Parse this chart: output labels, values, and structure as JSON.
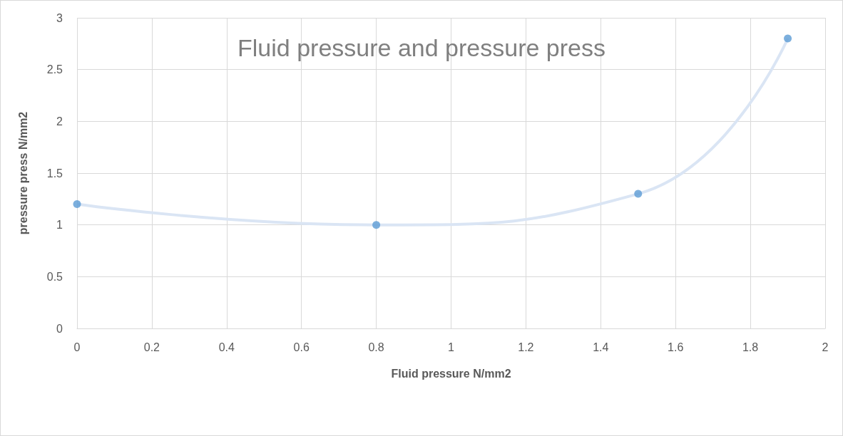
{
  "chart_data": {
    "type": "scatter",
    "title": "Fluid pressure and pressure press",
    "xlabel": "Fluid pressure N/mm2",
    "ylabel": "pressure press N/mm2",
    "x": [
      0,
      0.8,
      1.5,
      1.9
    ],
    "series": [
      {
        "type": "line",
        "color": "#dae5f4",
        "marker": "none",
        "values": [
          1.2,
          1.0,
          1.3,
          2.8
        ]
      },
      {
        "color": "#5b9bd5",
        "marker": "circle",
        "values": [
          1.2,
          1.0,
          1.3,
          2.8
        ]
      }
    ],
    "xlim": [
      0,
      2
    ],
    "xticks": [
      0,
      0.2,
      0.4,
      0.6,
      0.8,
      1,
      1.2,
      1.4,
      1.6,
      1.8,
      2
    ],
    "ylim": [
      0,
      3
    ],
    "yticks": [
      0,
      0.5,
      1,
      1.5,
      2,
      2.5,
      3
    ],
    "grid": true
  }
}
